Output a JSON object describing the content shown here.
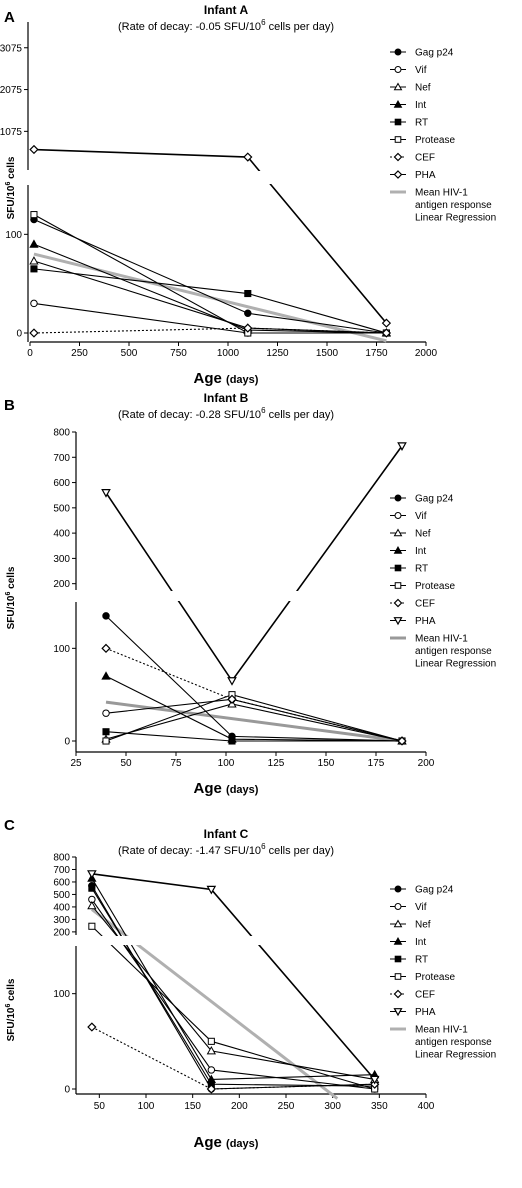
{
  "chart_data": [
    {
      "type": "line",
      "panel_letter": "A",
      "title": "Infant A",
      "subtitle_text": "(Rate of decay: -0.05 SFU/10",
      "subtitle_exponent": "6",
      "subtitle_tail": " cells per day)",
      "xlabel": "Age",
      "xlabel_unit": "(days)",
      "ylabel": "SFU/10",
      "ylabel_exponent": "6",
      "ylabel_tail": " cells",
      "xlim": [
        0,
        2000
      ],
      "x_ticks": [
        0,
        250,
        500,
        750,
        1000,
        1250,
        1500,
        1750,
        2000
      ],
      "y_lower_range": [
        0,
        150
      ],
      "y_lower_ticks": [
        0,
        100
      ],
      "y_upper_range": [
        150,
        3500
      ],
      "y_upper_ticks": [
        1075,
        2075,
        3075
      ],
      "series": [
        {
          "name": "Gag p24",
          "marker": "circle-filled",
          "dash": false,
          "x": [
            20,
            1100,
            1800
          ],
          "y": [
            115,
            20,
            0
          ]
        },
        {
          "name": "Vif",
          "marker": "circle-open",
          "dash": false,
          "x": [
            20,
            1100,
            1800
          ],
          "y": [
            30,
            0,
            0
          ]
        },
        {
          "name": "Nef",
          "marker": "triangle-open",
          "dash": false,
          "x": [
            20,
            1100,
            1800
          ],
          "y": [
            73,
            5,
            0
          ]
        },
        {
          "name": "Int",
          "marker": "triangle-filled",
          "dash": false,
          "x": [
            20,
            1100,
            1800
          ],
          "y": [
            90,
            3,
            0
          ]
        },
        {
          "name": "RT",
          "marker": "square-filled",
          "dash": false,
          "x": [
            20,
            1100,
            1800
          ],
          "y": [
            65,
            40,
            0
          ]
        },
        {
          "name": "Protease",
          "marker": "square-open",
          "dash": false,
          "x": [
            20,
            1100,
            1800
          ],
          "y": [
            120,
            0,
            0
          ]
        },
        {
          "name": "CEF",
          "marker": "diamond-open",
          "dash": true,
          "x": [
            20,
            1100,
            1800
          ],
          "y": [
            0,
            5,
            0
          ]
        },
        {
          "name": "PHA",
          "marker": "diamond-open",
          "dash": false,
          "x": [
            20,
            1100,
            1800
          ],
          "y": [
            640,
            460,
            10
          ]
        }
      ],
      "regression": {
        "name_line1": "Mean HIV-1",
        "name_line2": "antigen response",
        "name_line3": "Linear Regression",
        "color": "#b0b0b0",
        "x": [
          20,
          1800
        ],
        "y": [
          80,
          -8
        ]
      }
    },
    {
      "type": "line",
      "panel_letter": "B",
      "title": "Infant B",
      "subtitle_text": "(Rate of decay: -0.28 SFU/10",
      "subtitle_exponent": "6",
      "subtitle_tail": " cells per day)",
      "xlabel": "Age",
      "xlabel_unit": "(days)",
      "ylabel": "SFU/10",
      "ylabel_exponent": "6",
      "ylabel_tail": " cells",
      "xlim": [
        25,
        200
      ],
      "x_ticks": [
        25,
        50,
        75,
        100,
        125,
        150,
        175,
        200
      ],
      "y_lower_range": [
        0,
        150
      ],
      "y_lower_ticks": [
        0,
        100
      ],
      "y_upper_range": [
        175,
        800
      ],
      "y_upper_ticks": [
        200,
        300,
        400,
        500,
        600,
        700,
        800
      ],
      "series": [
        {
          "name": "Gag p24",
          "marker": "circle-filled",
          "dash": false,
          "x": [
            40,
            103,
            188
          ],
          "y": [
            135,
            5,
            0
          ]
        },
        {
          "name": "Vif",
          "marker": "circle-open",
          "dash": false,
          "x": [
            40,
            103,
            188
          ],
          "y": [
            30,
            45,
            0
          ]
        },
        {
          "name": "Nef",
          "marker": "triangle-open",
          "dash": false,
          "x": [
            40,
            103,
            188
          ],
          "y": [
            2,
            40,
            0
          ]
        },
        {
          "name": "Int",
          "marker": "triangle-filled",
          "dash": false,
          "x": [
            40,
            103,
            188
          ],
          "y": [
            70,
            2,
            0
          ]
        },
        {
          "name": "RT",
          "marker": "square-filled",
          "dash": false,
          "x": [
            40,
            103,
            188
          ],
          "y": [
            10,
            0,
            0
          ]
        },
        {
          "name": "Protease",
          "marker": "square-open",
          "dash": false,
          "x": [
            40,
            103,
            188
          ],
          "y": [
            0,
            50,
            0
          ]
        },
        {
          "name": "CEF",
          "marker": "diamond-open",
          "dash": true,
          "x": [
            40,
            103,
            188
          ],
          "y": [
            100,
            45,
            0
          ]
        },
        {
          "name": "PHA",
          "marker": "triangle-down-open",
          "dash": false,
          "x": [
            40,
            103,
            188
          ],
          "y": [
            560,
            65,
            745
          ]
        }
      ],
      "regression": {
        "name_line1": "Mean HIV-1",
        "name_line2": "antigen response",
        "name_line3": "Linear Regression",
        "color": "#999999",
        "x": [
          40,
          188
        ],
        "y": [
          42,
          0
        ]
      }
    },
    {
      "type": "line",
      "panel_letter": "C",
      "title": "Infant C",
      "subtitle_text": "(Rate of decay: -1.47 SFU/10",
      "subtitle_exponent": "6",
      "subtitle_tail": " cells per day)",
      "xlabel": "Age",
      "xlabel_unit": "(days)",
      "ylabel": "SFU/10",
      "ylabel_exponent": "6",
      "ylabel_tail": " cells",
      "xlim": [
        25,
        400
      ],
      "x_ticks": [
        50,
        100,
        150,
        200,
        250,
        300,
        350,
        400
      ],
      "y_lower_range": [
        0,
        150
      ],
      "y_lower_ticks": [
        0,
        100
      ],
      "y_upper_range": [
        175,
        800
      ],
      "y_upper_ticks": [
        200,
        300,
        400,
        500,
        600,
        700,
        800
      ],
      "series": [
        {
          "name": "Gag p24",
          "marker": "circle-filled",
          "dash": false,
          "x": [
            42,
            170,
            345
          ],
          "y": [
            570,
            0,
            5
          ]
        },
        {
          "name": "Vif",
          "marker": "circle-open",
          "dash": false,
          "x": [
            42,
            170,
            345
          ],
          "y": [
            460,
            20,
            0
          ]
        },
        {
          "name": "Nef",
          "marker": "triangle-open",
          "dash": false,
          "x": [
            42,
            170,
            345
          ],
          "y": [
            410,
            40,
            10
          ]
        },
        {
          "name": "Int",
          "marker": "triangle-filled",
          "dash": false,
          "x": [
            42,
            170,
            345
          ],
          "y": [
            630,
            10,
            15
          ]
        },
        {
          "name": "RT",
          "marker": "square-filled",
          "dash": false,
          "x": [
            42,
            170,
            345
          ],
          "y": [
            550,
            5,
            3
          ]
        },
        {
          "name": "Protease",
          "marker": "square-open",
          "dash": false,
          "x": [
            42,
            170,
            345
          ],
          "y": [
            245,
            50,
            0
          ]
        },
        {
          "name": "CEF",
          "marker": "diamond-open",
          "dash": true,
          "x": [
            42,
            170,
            345
          ],
          "y": [
            65,
            0,
            5
          ]
        },
        {
          "name": "PHA",
          "marker": "triangle-down-open",
          "dash": false,
          "x": [
            42,
            170,
            345
          ],
          "y": [
            665,
            540,
            10
          ]
        }
      ],
      "regression": {
        "name_line1": "Mean HIV-1",
        "name_line2": "antigen response",
        "name_line3": "Linear Regression",
        "color": "#b0b0b0",
        "x": [
          42,
          305
        ],
        "y": [
          380,
          -10
        ]
      }
    }
  ]
}
